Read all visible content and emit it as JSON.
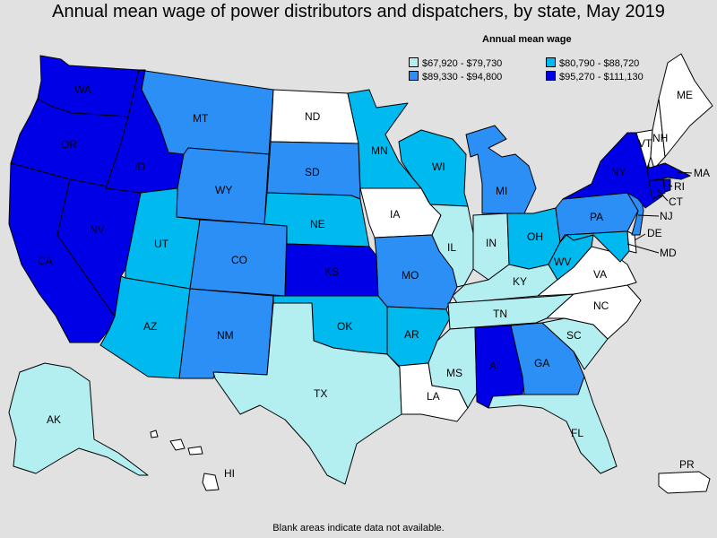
{
  "title": "Annual mean wage of power distributors and dispatchers, by state, May 2019",
  "legend": {
    "title": "Annual mean wage",
    "bins": [
      {
        "label": "$67,920 - $79,730",
        "color": "#b3eef0"
      },
      {
        "label": "$80,790 - $88,720",
        "color": "#00b9ee"
      },
      {
        "label": "$89,330 - $94,800",
        "color": "#2b8ff5"
      },
      {
        "label": "$95,270 - $111,130",
        "color": "#0000e6"
      }
    ]
  },
  "no_data_color": "#ffffff",
  "footer": "Blank areas indicate data not available.",
  "states": [
    {
      "abbr": "WA",
      "bin": 3
    },
    {
      "abbr": "OR",
      "bin": 3
    },
    {
      "abbr": "CA",
      "bin": 3
    },
    {
      "abbr": "NV",
      "bin": 3
    },
    {
      "abbr": "ID",
      "bin": 3
    },
    {
      "abbr": "MT",
      "bin": 2
    },
    {
      "abbr": "WY",
      "bin": 2
    },
    {
      "abbr": "UT",
      "bin": 1
    },
    {
      "abbr": "AZ",
      "bin": 1
    },
    {
      "abbr": "CO",
      "bin": 2
    },
    {
      "abbr": "NM",
      "bin": 2
    },
    {
      "abbr": "ND",
      "bin": null
    },
    {
      "abbr": "SD",
      "bin": 2
    },
    {
      "abbr": "NE",
      "bin": 1
    },
    {
      "abbr": "KS",
      "bin": 3
    },
    {
      "abbr": "OK",
      "bin": 1
    },
    {
      "abbr": "TX",
      "bin": 0
    },
    {
      "abbr": "MN",
      "bin": 1
    },
    {
      "abbr": "IA",
      "bin": null
    },
    {
      "abbr": "MO",
      "bin": 2
    },
    {
      "abbr": "AR",
      "bin": 1
    },
    {
      "abbr": "LA",
      "bin": null
    },
    {
      "abbr": "WI",
      "bin": 1
    },
    {
      "abbr": "IL",
      "bin": 0
    },
    {
      "abbr": "MI",
      "bin": 2
    },
    {
      "abbr": "IN",
      "bin": 0
    },
    {
      "abbr": "OH",
      "bin": 1
    },
    {
      "abbr": "KY",
      "bin": 0
    },
    {
      "abbr": "TN",
      "bin": 0
    },
    {
      "abbr": "MS",
      "bin": 0
    },
    {
      "abbr": "AL",
      "bin": 3
    },
    {
      "abbr": "GA",
      "bin": 2
    },
    {
      "abbr": "FL",
      "bin": 0
    },
    {
      "abbr": "SC",
      "bin": 0
    },
    {
      "abbr": "NC",
      "bin": null
    },
    {
      "abbr": "VA",
      "bin": null
    },
    {
      "abbr": "WV",
      "bin": 1
    },
    {
      "abbr": "PA",
      "bin": 2
    },
    {
      "abbr": "NY",
      "bin": 3
    },
    {
      "abbr": "VT",
      "bin": null
    },
    {
      "abbr": "NH",
      "bin": null
    },
    {
      "abbr": "ME",
      "bin": null
    },
    {
      "abbr": "MA",
      "bin": 3
    },
    {
      "abbr": "CT",
      "bin": 3
    },
    {
      "abbr": "RI",
      "bin": 3
    },
    {
      "abbr": "NJ",
      "bin": 2
    },
    {
      "abbr": "DE",
      "bin": null
    },
    {
      "abbr": "MD",
      "bin": 1
    },
    {
      "abbr": "AK",
      "bin": 0
    },
    {
      "abbr": "HI",
      "bin": null
    },
    {
      "abbr": "PR",
      "bin": null
    }
  ]
}
